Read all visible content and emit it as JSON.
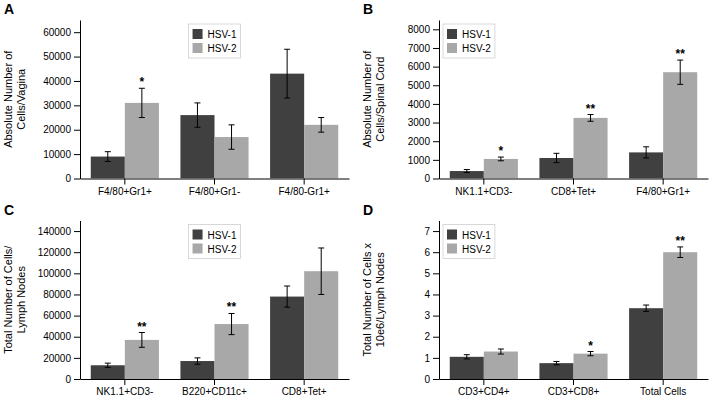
{
  "chart_data": [
    {
      "type": "bar",
      "title": "A",
      "categories": [
        "F4/80+Gr1+",
        "F4/80+Gr1-",
        "F4/80-Gr1+"
      ],
      "series": [
        {
          "name": "HSV-1",
          "color": "#404040",
          "values": [
            9000,
            26000,
            43000
          ],
          "errors": [
            2000,
            5000,
            10000
          ]
        },
        {
          "name": "HSV-2",
          "color": "#a8a8a8",
          "values": [
            31000,
            17000,
            22000
          ],
          "errors": [
            6000,
            5000,
            3000
          ]
        }
      ],
      "ylabel": "Absolute Number of\nCells/Vagina",
      "ylim": [
        0,
        65000
      ],
      "yticks": [
        0,
        10000,
        20000,
        30000,
        40000,
        50000,
        60000
      ],
      "annotations": [
        {
          "text": "*",
          "category": "F4/80+Gr1+",
          "series": "HSV-2"
        }
      ],
      "legend": "upper center"
    },
    {
      "type": "bar",
      "title": "B",
      "categories": [
        "NK1.1+CD3-",
        "CD8+Tet+",
        "F4/80+Gr1+"
      ],
      "series": [
        {
          "name": "HSV-1",
          "color": "#404040",
          "values": [
            400,
            1100,
            1400
          ],
          "errors": [
            80,
            250,
            300
          ]
        },
        {
          "name": "HSV-2",
          "color": "#a8a8a8",
          "values": [
            1050,
            3250,
            5700
          ],
          "errors": [
            100,
            180,
            650
          ]
        }
      ],
      "ylabel": "Absolute Number of\nCells/Spinal Cord",
      "ylim": [
        0,
        8500
      ],
      "yticks": [
        0,
        1000,
        2000,
        3000,
        4000,
        5000,
        6000,
        7000,
        8000
      ],
      "annotations": [
        {
          "text": "*",
          "category": "NK1.1+CD3-",
          "series": "HSV-2"
        },
        {
          "text": "**",
          "category": "CD8+Tet+",
          "series": "HSV-2"
        },
        {
          "text": "**",
          "category": "F4/80+Gr1+",
          "series": "HSV-2"
        }
      ],
      "legend": "upper left"
    },
    {
      "type": "bar",
      "title": "C",
      "categories": [
        "NK1.1+CD3-",
        "B220+CD11c+",
        "CD8+Tet+"
      ],
      "series": [
        {
          "name": "HSV-1",
          "color": "#404040",
          "values": [
            13000,
            17000,
            78000
          ],
          "errors": [
            2000,
            3000,
            10000
          ]
        },
        {
          "name": "HSV-2",
          "color": "#a8a8a8",
          "values": [
            37000,
            52000,
            102000
          ],
          "errors": [
            7000,
            10000,
            22000
          ]
        }
      ],
      "ylabel": "Total Number of Cells/\nLymph Nodes",
      "ylim": [
        0,
        150000
      ],
      "yticks": [
        0,
        20000,
        40000,
        60000,
        80000,
        100000,
        120000,
        140000
      ],
      "annotations": [
        {
          "text": "**",
          "category": "NK1.1+CD3-",
          "series": "HSV-2"
        },
        {
          "text": "**",
          "category": "B220+CD11c+",
          "series": "HSV-2"
        }
      ],
      "legend": "upper center"
    },
    {
      "type": "bar",
      "title": "D",
      "categories": [
        "CD3+CD4+",
        "CD3+CD8+",
        "Total Cells"
      ],
      "series": [
        {
          "name": "HSV-1",
          "color": "#404040",
          "values": [
            1.05,
            0.75,
            3.35
          ],
          "errors": [
            0.1,
            0.08,
            0.15
          ]
        },
        {
          "name": "HSV-2",
          "color": "#a8a8a8",
          "values": [
            1.3,
            1.2,
            6.0
          ],
          "errors": [
            0.12,
            0.1,
            0.25
          ]
        }
      ],
      "ylabel": "Total Number of Cells x\n10e6/Lymph Nodes",
      "ylim": [
        0,
        7.5
      ],
      "yticks": [
        0,
        1,
        2,
        3,
        4,
        5,
        6,
        7
      ],
      "annotations": [
        {
          "text": "*",
          "category": "CD3+CD8+",
          "series": "HSV-2"
        },
        {
          "text": "**",
          "category": "Total Cells",
          "series": "HSV-2"
        }
      ],
      "legend": "upper left"
    }
  ]
}
